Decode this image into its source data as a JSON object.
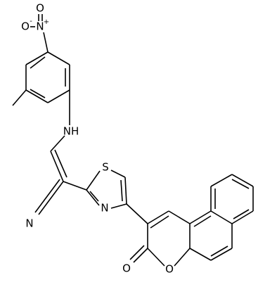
{
  "atoms": [
    {
      "label": "O",
      "charge": "-"
    },
    {
      "label": "N",
      "charge": "+"
    },
    {
      "label": "O"
    },
    {
      "label": "NH"
    },
    {
      "label": "N"
    },
    {
      "label": "S"
    },
    {
      "label": "N"
    },
    {
      "label": "O"
    },
    {
      "label": "O"
    }
  ]
}
